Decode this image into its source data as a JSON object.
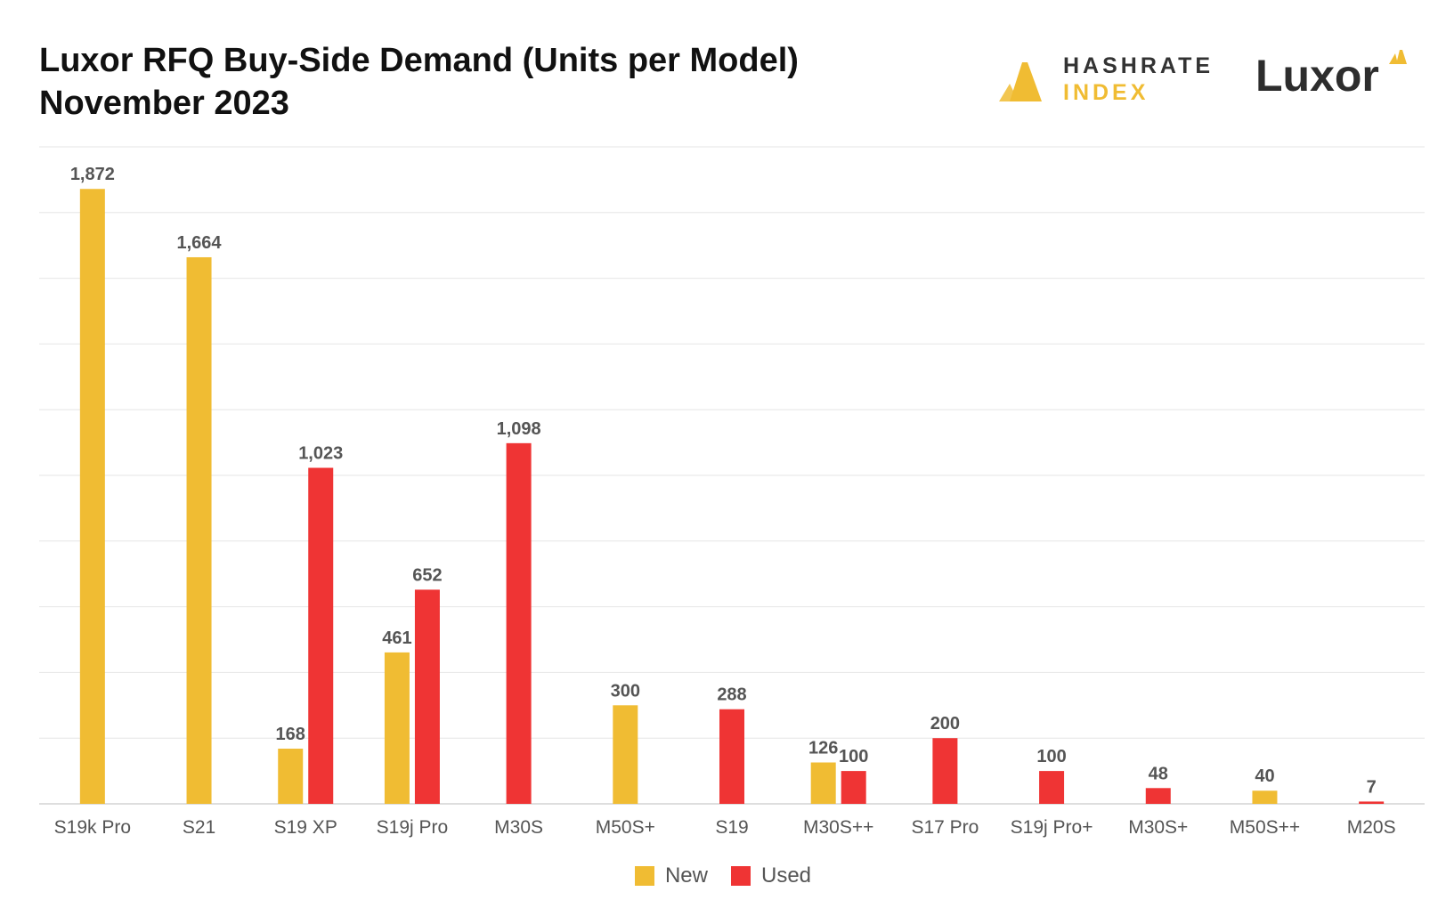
{
  "title_line1": "Luxor RFQ Buy-Side Demand (Units per Model)",
  "title_line2": "November 2023",
  "logos": {
    "hashrate_line1": "HASHRATE",
    "hashrate_line2": "INDEX",
    "luxor": "Luxor"
  },
  "colors": {
    "new": "#f0bc33",
    "used": "#ef3434",
    "grid": "#e6e6e6",
    "label": "#555555"
  },
  "chart_data": {
    "type": "bar",
    "categories": [
      "S19k Pro",
      "S21",
      "S19 XP",
      "S19j Pro",
      "M30S",
      "M50S+",
      "S19",
      "M30S++",
      "S17 Pro",
      "S19j Pro+",
      "M30S+",
      "M50S++",
      "M20S"
    ],
    "series": [
      {
        "name": "New",
        "values": [
          1872,
          1664,
          168,
          461,
          null,
          300,
          null,
          126,
          null,
          null,
          null,
          40,
          null
        ]
      },
      {
        "name": "Used",
        "values": [
          null,
          null,
          1023,
          652,
          1098,
          null,
          288,
          100,
          200,
          100,
          48,
          null,
          7
        ]
      }
    ],
    "data_labels": [
      [
        "1,872",
        "1,664",
        "168",
        "461",
        null,
        "300",
        null,
        "126",
        null,
        null,
        null,
        "40",
        null
      ],
      [
        null,
        null,
        "1,023",
        "652",
        "1,098",
        null,
        "288",
        "100",
        "200",
        "100",
        "48",
        null,
        "7"
      ]
    ],
    "ylim": [
      0,
      2000
    ],
    "grid": true,
    "legend": "bottom-center"
  }
}
